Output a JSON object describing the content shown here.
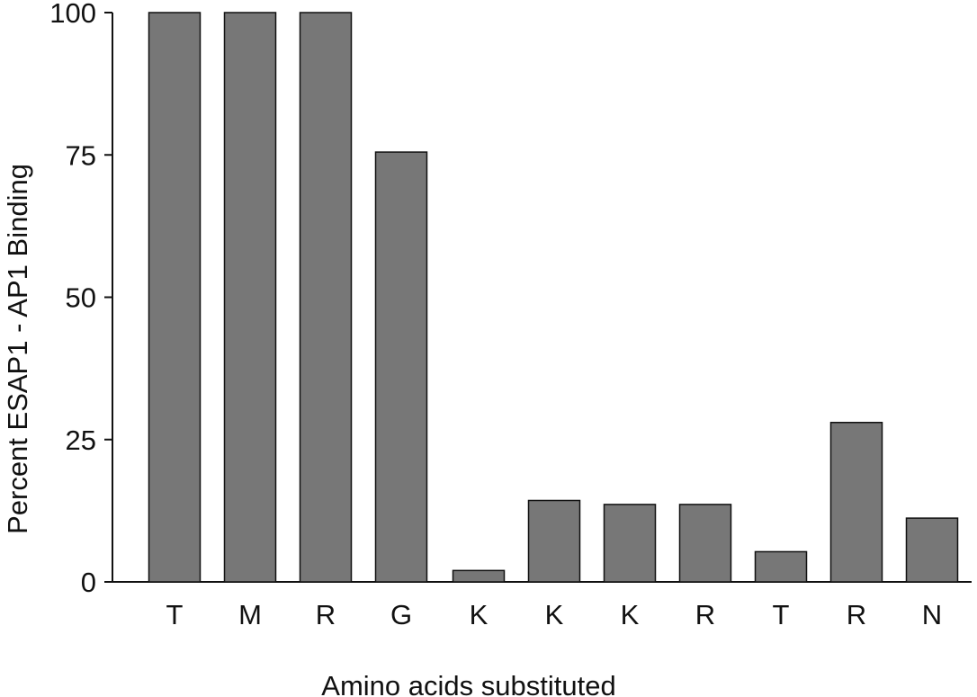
{
  "chart_data": {
    "type": "bar",
    "categories": [
      "T",
      "M",
      "R",
      "G",
      "K",
      "K",
      "K",
      "R",
      "T",
      "R",
      "N"
    ],
    "values": [
      100,
      100,
      100,
      75.5,
      2,
      14.3,
      13.6,
      13.6,
      5.3,
      28,
      11.2
    ],
    "title": "",
    "xlabel": "Amino acids substituted",
    "ylabel": "Percent ESAP1 - AP1 Binding",
    "ylim": [
      0,
      100
    ],
    "yticks": [
      0,
      25,
      50,
      75,
      100
    ],
    "grid": false,
    "legend": "none",
    "colors": {
      "bar_fill": "#777777",
      "bar_stroke": "#111111",
      "axis": "#111111",
      "text": "#111111"
    }
  }
}
